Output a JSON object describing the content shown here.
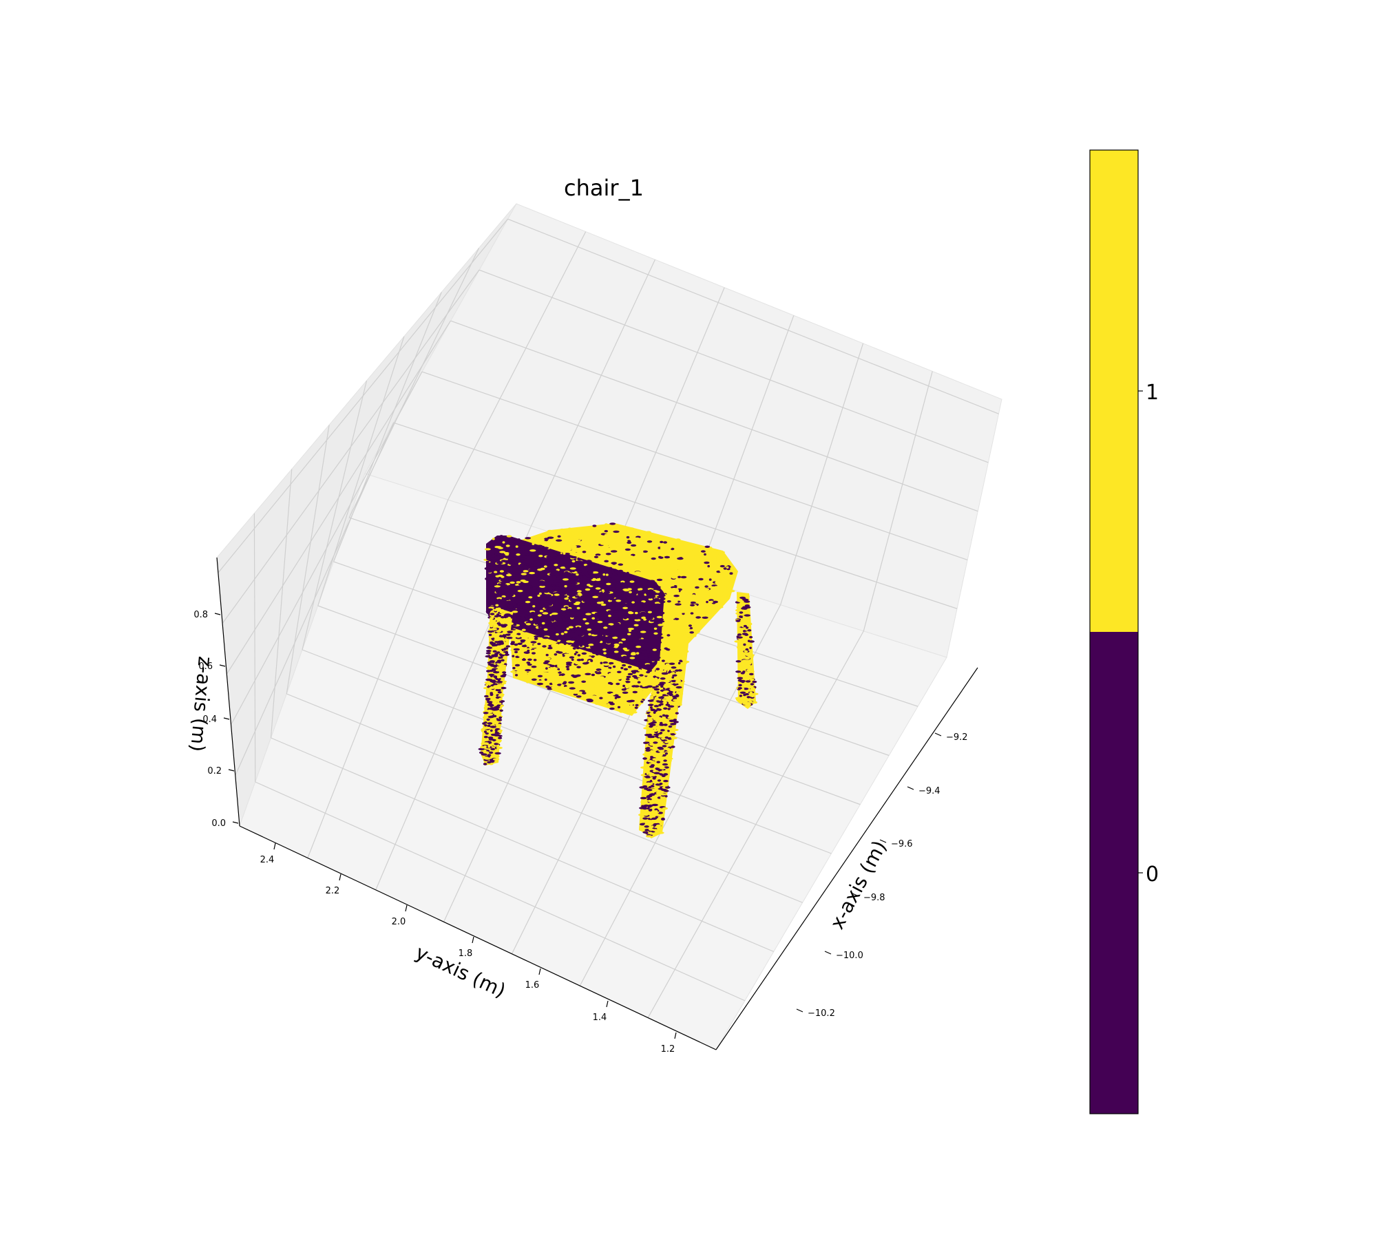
{
  "chart_data": {
    "type": "scatter",
    "projection": "3d",
    "title": "chair_1",
    "xlabel": "x-axis (m)",
    "ylabel": "y-axis (m)",
    "zlabel": "z-axis (m)",
    "x_ticks": [
      "−9.2",
      "−9.4",
      "−9.6",
      "−9.8",
      "−10.0",
      "−10.2"
    ],
    "y_ticks": [
      "2.4",
      "2.2",
      "2.0",
      "1.8",
      "1.6",
      "1.4",
      "1.2"
    ],
    "z_ticks": [
      "0.8",
      "0.6",
      "0.4",
      "0.2",
      "0.0"
    ],
    "xlim": [
      -10.3,
      -9.05
    ],
    "ylim": [
      1.15,
      2.55
    ],
    "zlim": [
      -0.02,
      0.95
    ],
    "grid": true,
    "colorbar": {
      "ticks": [
        "1",
        "0"
      ],
      "classes": [
        {
          "label": "0",
          "color": "#440154"
        },
        {
          "label": "1",
          "color": "#fde725"
        }
      ]
    },
    "series": [
      {
        "label": "1",
        "color": "#fde725",
        "share": 0.55
      },
      {
        "label": "0",
        "color": "#440154",
        "share": 0.45
      }
    ]
  }
}
